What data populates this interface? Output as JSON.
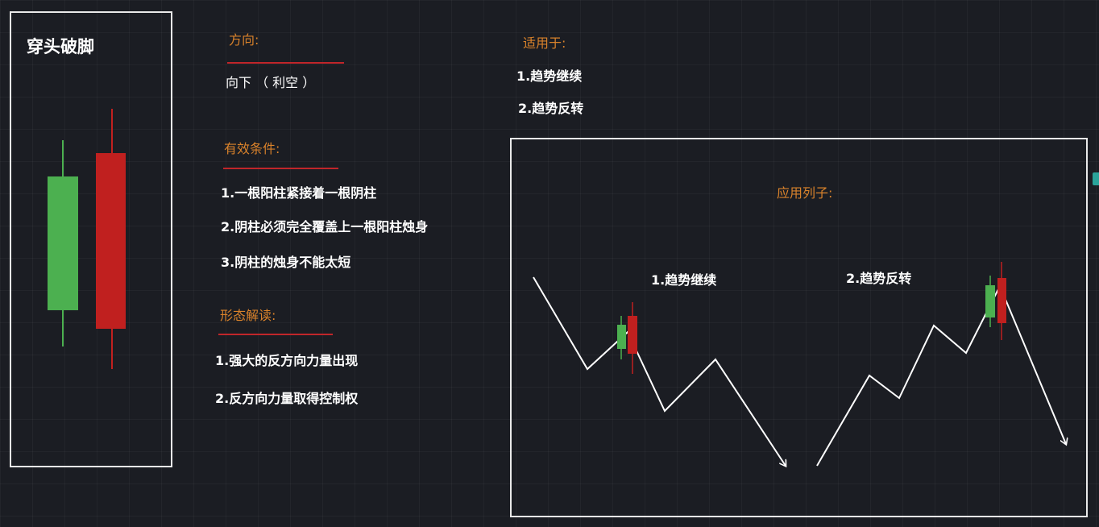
{
  "pattern": {
    "title": "穿头破脚",
    "candle_colors": {
      "bullish": "#4cb050",
      "bearish": "#c0201f"
    }
  },
  "direction": {
    "heading": "方向:",
    "value": "向下 （ 利空 ）"
  },
  "conditions": {
    "heading": "有效条件:",
    "items": [
      "1.一根阳柱紧接着一根阴柱",
      "2.阴柱必须完全覆盖上一根阳柱烛身",
      "3.阴柱的烛身不能太短"
    ]
  },
  "interpretation": {
    "heading": "形态解读:",
    "items": [
      "1.强大的反方向力量出现",
      "2.反方向力量取得控制权"
    ]
  },
  "applies_to": {
    "heading": "适用于:",
    "items": [
      "1.趋势继续",
      "2.趋势反转"
    ]
  },
  "example": {
    "heading": "应用列子:",
    "case1_label": "1.趋势继续",
    "case2_label": "2.趋势反转"
  },
  "colors": {
    "heading": "#d9822b",
    "underline": "#c0262a",
    "border": "#e9e9e9",
    "background": "#1b1d23"
  }
}
